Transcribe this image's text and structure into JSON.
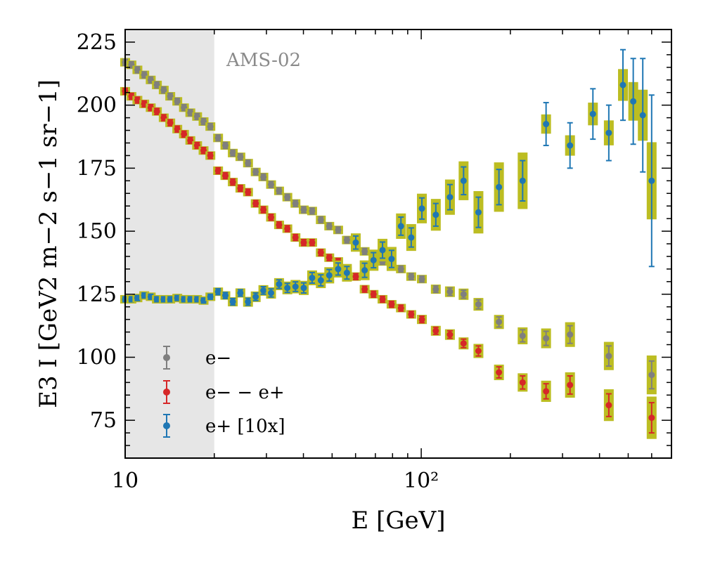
{
  "chart_data": {
    "type": "scatter",
    "annotation": "AMS-02",
    "xlabel": "E [GeV]",
    "ylabel": "E3 I [GeV2 m−2 s−1 sr−1]",
    "x_scale": "log",
    "xlim": [
      10,
      700
    ],
    "ylim": [
      60,
      230
    ],
    "x_tick_labels": [
      "10",
      "10²"
    ],
    "y_ticks": [
      75,
      100,
      125,
      150,
      175,
      200,
      225
    ],
    "shaded_region": [
      10,
      20
    ],
    "legend_position": "lower-left",
    "colors": {
      "electron": "#7f7f7f",
      "difference": "#d62728",
      "positron": "#1f77b4",
      "systematic_box": "#bcbd22",
      "shade": "#e6e6e6"
    },
    "series": [
      {
        "name": "e−",
        "color_key": "electron",
        "points": [
          {
            "x": 10.0,
            "y": 217.0,
            "err": 1.2
          },
          {
            "x": 10.5,
            "y": 216.0,
            "err": 1.2
          },
          {
            "x": 11.0,
            "y": 214.0,
            "err": 1.2
          },
          {
            "x": 11.6,
            "y": 212.0,
            "err": 1.2
          },
          {
            "x": 12.2,
            "y": 210.0,
            "err": 1.2
          },
          {
            "x": 12.8,
            "y": 208.0,
            "err": 1.2
          },
          {
            "x": 13.5,
            "y": 206.0,
            "err": 1.2
          },
          {
            "x": 14.2,
            "y": 203.5,
            "err": 1.2
          },
          {
            "x": 15.0,
            "y": 201.5,
            "err": 1.2
          },
          {
            "x": 15.8,
            "y": 199.0,
            "err": 1.2
          },
          {
            "x": 16.6,
            "y": 197.0,
            "err": 1.2
          },
          {
            "x": 17.5,
            "y": 195.5,
            "err": 1.2
          },
          {
            "x": 18.4,
            "y": 193.5,
            "err": 1.2
          },
          {
            "x": 19.4,
            "y": 191.5,
            "err": 1.2
          },
          {
            "x": 20.6,
            "y": 187.0,
            "err": 1.2
          },
          {
            "x": 21.8,
            "y": 184.0,
            "err": 1.2
          },
          {
            "x": 23.1,
            "y": 181.0,
            "err": 1.2
          },
          {
            "x": 24.5,
            "y": 179.5,
            "err": 1.2
          },
          {
            "x": 26.0,
            "y": 177.0,
            "err": 1.2
          },
          {
            "x": 27.6,
            "y": 173.5,
            "err": 1.2
          },
          {
            "x": 29.3,
            "y": 171.5,
            "err": 1.2
          },
          {
            "x": 31.1,
            "y": 168.5,
            "err": 1.2
          },
          {
            "x": 33.1,
            "y": 166.0,
            "err": 1.2
          },
          {
            "x": 35.3,
            "y": 163.5,
            "err": 1.2
          },
          {
            "x": 37.6,
            "y": 161.0,
            "err": 1.2
          },
          {
            "x": 40.1,
            "y": 158.5,
            "err": 1.2
          },
          {
            "x": 42.8,
            "y": 158.0,
            "err": 1.2
          },
          {
            "x": 45.8,
            "y": 154.5,
            "err": 1.2
          },
          {
            "x": 48.9,
            "y": 152.0,
            "err": 1.2
          },
          {
            "x": 52.4,
            "y": 150.5,
            "err": 1.2
          },
          {
            "x": 56.1,
            "y": 146.5,
            "err": 1.2
          },
          {
            "x": 60.1,
            "y": 145.5,
            "err": 1.2
          },
          {
            "x": 64.4,
            "y": 142.0,
            "err": 1.2
          },
          {
            "x": 69.0,
            "y": 140.0,
            "err": 1.2
          },
          {
            "x": 74.0,
            "y": 138.0,
            "err": 1.2
          },
          {
            "x": 79.4,
            "y": 137.5,
            "err": 1.2
          },
          {
            "x": 85.4,
            "y": 135.0,
            "err": 1.2
          },
          {
            "x": 92.5,
            "y": 132.0,
            "err": 1.2
          },
          {
            "x": 100.5,
            "y": 131.0,
            "err": 1.2
          },
          {
            "x": 112.0,
            "y": 127.0,
            "err": 1.3
          },
          {
            "x": 125.0,
            "y": 126.0,
            "err": 1.5
          },
          {
            "x": 139.0,
            "y": 125.0,
            "err": 1.6
          },
          {
            "x": 156.0,
            "y": 121.0,
            "err": 1.8
          },
          {
            "x": 183.0,
            "y": 114.0,
            "err": 2.0
          },
          {
            "x": 220.0,
            "y": 108.5,
            "err": 2.4
          },
          {
            "x": 264.0,
            "y": 107.5,
            "err": 2.8
          },
          {
            "x": 318.0,
            "y": 109.0,
            "err": 3.5
          },
          {
            "x": 430.0,
            "y": 100.5,
            "err": 4.0
          },
          {
            "x": 600.0,
            "y": 93.0,
            "err": 5.5
          }
        ]
      },
      {
        "name": "e− − e+",
        "color_key": "difference",
        "points": [
          {
            "x": 10.0,
            "y": 205.5,
            "err": 1.2
          },
          {
            "x": 10.5,
            "y": 203.5,
            "err": 1.2
          },
          {
            "x": 11.0,
            "y": 202.0,
            "err": 1.2
          },
          {
            "x": 11.6,
            "y": 200.5,
            "err": 1.2
          },
          {
            "x": 12.2,
            "y": 199.0,
            "err": 1.2
          },
          {
            "x": 12.8,
            "y": 197.5,
            "err": 1.2
          },
          {
            "x": 13.5,
            "y": 195.0,
            "err": 1.2
          },
          {
            "x": 14.2,
            "y": 193.0,
            "err": 1.2
          },
          {
            "x": 15.0,
            "y": 190.5,
            "err": 1.2
          },
          {
            "x": 15.8,
            "y": 188.5,
            "err": 1.2
          },
          {
            "x": 16.6,
            "y": 186.0,
            "err": 1.2
          },
          {
            "x": 17.5,
            "y": 184.0,
            "err": 1.2
          },
          {
            "x": 18.4,
            "y": 182.0,
            "err": 1.2
          },
          {
            "x": 19.4,
            "y": 180.0,
            "err": 1.2
          },
          {
            "x": 20.6,
            "y": 174.0,
            "err": 1.2
          },
          {
            "x": 21.8,
            "y": 172.0,
            "err": 1.2
          },
          {
            "x": 23.1,
            "y": 169.5,
            "err": 1.2
          },
          {
            "x": 24.5,
            "y": 167.0,
            "err": 1.2
          },
          {
            "x": 26.0,
            "y": 165.5,
            "err": 1.2
          },
          {
            "x": 27.6,
            "y": 161.0,
            "err": 1.2
          },
          {
            "x": 29.3,
            "y": 158.5,
            "err": 1.2
          },
          {
            "x": 31.1,
            "y": 155.5,
            "err": 1.2
          },
          {
            "x": 33.1,
            "y": 152.5,
            "err": 1.2
          },
          {
            "x": 35.3,
            "y": 151.0,
            "err": 1.2
          },
          {
            "x": 37.6,
            "y": 147.5,
            "err": 1.2
          },
          {
            "x": 40.1,
            "y": 145.5,
            "err": 1.2
          },
          {
            "x": 42.8,
            "y": 145.5,
            "err": 1.2
          },
          {
            "x": 45.8,
            "y": 141.5,
            "err": 1.2
          },
          {
            "x": 48.9,
            "y": 139.5,
            "err": 1.2
          },
          {
            "x": 52.4,
            "y": 138.0,
            "err": 1.2
          },
          {
            "x": 56.1,
            "y": 134.0,
            "err": 1.2
          },
          {
            "x": 60.1,
            "y": 132.0,
            "err": 1.2
          },
          {
            "x": 64.4,
            "y": 127.0,
            "err": 1.2
          },
          {
            "x": 69.0,
            "y": 125.0,
            "err": 1.2
          },
          {
            "x": 74.0,
            "y": 123.0,
            "err": 1.2
          },
          {
            "x": 79.4,
            "y": 121.0,
            "err": 1.2
          },
          {
            "x": 85.4,
            "y": 119.5,
            "err": 1.2
          },
          {
            "x": 92.5,
            "y": 117.0,
            "err": 1.2
          },
          {
            "x": 100.5,
            "y": 115.0,
            "err": 1.3
          },
          {
            "x": 112.0,
            "y": 110.5,
            "err": 1.4
          },
          {
            "x": 125.0,
            "y": 109.0,
            "err": 1.5
          },
          {
            "x": 139.0,
            "y": 105.5,
            "err": 1.7
          },
          {
            "x": 156.0,
            "y": 102.5,
            "err": 2.0
          },
          {
            "x": 183.0,
            "y": 94.0,
            "err": 2.2
          },
          {
            "x": 220.0,
            "y": 90.0,
            "err": 2.6
          },
          {
            "x": 264.0,
            "y": 86.5,
            "err": 3.0
          },
          {
            "x": 318.0,
            "y": 89.0,
            "err": 3.6
          },
          {
            "x": 430.0,
            "y": 81.0,
            "err": 4.5
          },
          {
            "x": 600.0,
            "y": 76.0,
            "err": 6.0
          }
        ]
      },
      {
        "name": "e+ [10x]",
        "color_key": "positron",
        "points": [
          {
            "x": 10.0,
            "y": 123.0,
            "err": 1.0
          },
          {
            "x": 10.5,
            "y": 123.0,
            "err": 1.0
          },
          {
            "x": 11.0,
            "y": 123.5,
            "err": 1.0
          },
          {
            "x": 11.6,
            "y": 124.5,
            "err": 1.0
          },
          {
            "x": 12.2,
            "y": 124.0,
            "err": 1.0
          },
          {
            "x": 12.8,
            "y": 123.0,
            "err": 1.0
          },
          {
            "x": 13.5,
            "y": 123.0,
            "err": 1.0
          },
          {
            "x": 14.2,
            "y": 123.0,
            "err": 1.0
          },
          {
            "x": 15.0,
            "y": 123.5,
            "err": 1.0
          },
          {
            "x": 15.8,
            "y": 123.0,
            "err": 1.0
          },
          {
            "x": 16.6,
            "y": 123.0,
            "err": 1.0
          },
          {
            "x": 17.5,
            "y": 123.0,
            "err": 1.0
          },
          {
            "x": 18.4,
            "y": 122.5,
            "err": 1.0
          },
          {
            "x": 19.4,
            "y": 124.0,
            "err": 1.0
          },
          {
            "x": 20.6,
            "y": 126.0,
            "err": 1.2
          },
          {
            "x": 21.8,
            "y": 124.5,
            "err": 1.2
          },
          {
            "x": 23.1,
            "y": 122.0,
            "err": 1.3
          },
          {
            "x": 24.5,
            "y": 125.5,
            "err": 1.3
          },
          {
            "x": 26.0,
            "y": 122.0,
            "err": 1.4
          },
          {
            "x": 27.6,
            "y": 124.0,
            "err": 1.5
          },
          {
            "x": 29.3,
            "y": 126.5,
            "err": 1.5
          },
          {
            "x": 31.1,
            "y": 125.5,
            "err": 1.6
          },
          {
            "x": 33.1,
            "y": 129.0,
            "err": 1.7
          },
          {
            "x": 35.3,
            "y": 127.5,
            "err": 1.8
          },
          {
            "x": 37.6,
            "y": 128.0,
            "err": 1.9
          },
          {
            "x": 40.1,
            "y": 127.5,
            "err": 2.0
          },
          {
            "x": 42.8,
            "y": 131.5,
            "err": 2.1
          },
          {
            "x": 45.8,
            "y": 130.5,
            "err": 2.2
          },
          {
            "x": 48.9,
            "y": 132.5,
            "err": 2.3
          },
          {
            "x": 52.4,
            "y": 135.0,
            "err": 2.4
          },
          {
            "x": 56.1,
            "y": 133.5,
            "err": 2.5
          },
          {
            "x": 60.1,
            "y": 145.5,
            "err": 2.6
          },
          {
            "x": 64.4,
            "y": 134.5,
            "err": 2.8
          },
          {
            "x": 69.0,
            "y": 138.5,
            "err": 3.0
          },
          {
            "x": 74.0,
            "y": 142.5,
            "err": 3.2
          },
          {
            "x": 79.4,
            "y": 139.0,
            "err": 3.4
          },
          {
            "x": 85.4,
            "y": 152.0,
            "err": 3.6
          },
          {
            "x": 92.5,
            "y": 147.5,
            "err": 3.8
          },
          {
            "x": 100.5,
            "y": 159.0,
            "err": 4.2
          },
          {
            "x": 112.0,
            "y": 156.5,
            "err": 4.5
          },
          {
            "x": 125.0,
            "y": 163.5,
            "err": 5.0
          },
          {
            "x": 139.0,
            "y": 170.0,
            "err": 5.5
          },
          {
            "x": 156.0,
            "y": 157.5,
            "err": 6.0
          },
          {
            "x": 183.0,
            "y": 167.5,
            "err": 7.0
          },
          {
            "x": 220.0,
            "y": 170.0,
            "err": 8.0
          },
          {
            "x": 264.0,
            "y": 192.5,
            "err": 8.5
          },
          {
            "x": 318.0,
            "y": 184.0,
            "err": 9.0
          },
          {
            "x": 380.0,
            "y": 196.5,
            "err": 10.0
          },
          {
            "x": 430.0,
            "y": 189.0,
            "err": 11.0
          },
          {
            "x": 480.0,
            "y": 208.0,
            "err": 14.0
          },
          {
            "x": 520.0,
            "y": 201.5,
            "err": 17.0
          },
          {
            "x": 560.0,
            "y": 196.0,
            "err": 22.5
          },
          {
            "x": 600.0,
            "y": 170.0,
            "err": 34.0
          }
        ]
      }
    ]
  }
}
